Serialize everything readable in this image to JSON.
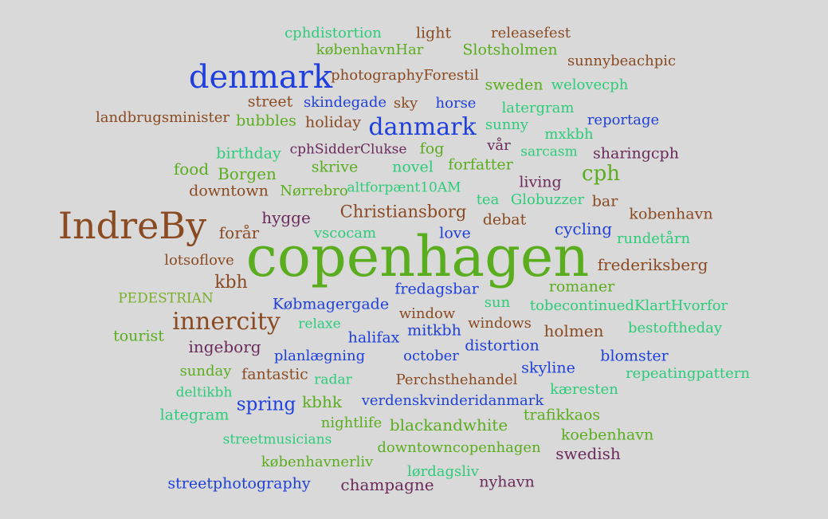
{
  "palette": {
    "background": "#d9d9d9",
    "green": "#5aad1e",
    "brown": "#8a4a22",
    "blue": "#1f3fe0",
    "teal": "#2dcc7a",
    "purple": "#6a2a5a",
    "olive": "#7aae2a"
  },
  "words": [
    {
      "text": "copenhagen",
      "color": "#5aad1e"
    },
    {
      "text": "IndreBy",
      "color": "#8a4a22"
    },
    {
      "text": "denmark",
      "color": "#1f3fe0"
    },
    {
      "text": "danmark",
      "color": "#1f3fe0"
    },
    {
      "text": "innercity",
      "color": "#8a4a22"
    },
    {
      "text": "cph",
      "color": "#5aad1e"
    },
    {
      "text": "Christiansborg",
      "color": "#8a4a22"
    },
    {
      "text": "spring",
      "color": "#1f3fe0"
    },
    {
      "text": "kbh",
      "color": "#8a4a22"
    },
    {
      "text": "cphdistortion",
      "color": "#2dcc7a"
    },
    {
      "text": "light",
      "color": "#8a4a22"
    },
    {
      "text": "releasefest",
      "color": "#8a4a22"
    },
    {
      "text": "københavnHar",
      "color": "#5aad1e"
    },
    {
      "text": "Slotsholmen",
      "color": "#5aad1e"
    },
    {
      "text": "sunnybeachpic",
      "color": "#8a4a22"
    },
    {
      "text": "photographyForestil",
      "color": "#8a4a22"
    },
    {
      "text": "sweden",
      "color": "#5aad1e"
    },
    {
      "text": "welovecph",
      "color": "#2dcc7a"
    },
    {
      "text": "street",
      "color": "#8a4a22"
    },
    {
      "text": "skindegade",
      "color": "#1f3fe0"
    },
    {
      "text": "sky",
      "color": "#8a4a22"
    },
    {
      "text": "horse",
      "color": "#1f3fe0"
    },
    {
      "text": "latergram",
      "color": "#2dcc7a"
    },
    {
      "text": "landbrugsminister",
      "color": "#8a4a22"
    },
    {
      "text": "bubbles",
      "color": "#5aad1e"
    },
    {
      "text": "holiday",
      "color": "#8a4a22"
    },
    {
      "text": "sunny",
      "color": "#2dcc7a"
    },
    {
      "text": "reportage",
      "color": "#1f3fe0"
    },
    {
      "text": "mxkbh",
      "color": "#2dcc7a"
    },
    {
      "text": "birthday",
      "color": "#2dcc7a"
    },
    {
      "text": "cphSidderClukse",
      "color": "#6a2a5a"
    },
    {
      "text": "fog",
      "color": "#5aad1e"
    },
    {
      "text": "vår",
      "color": "#6a2a5a"
    },
    {
      "text": "sarcasm",
      "color": "#2dcc7a"
    },
    {
      "text": "sharingcph",
      "color": "#6a2a5a"
    },
    {
      "text": "food",
      "color": "#5aad1e"
    },
    {
      "text": "Borgen",
      "color": "#5aad1e"
    },
    {
      "text": "skrive",
      "color": "#5aad1e"
    },
    {
      "text": "novel",
      "color": "#2dcc7a"
    },
    {
      "text": "forfatter",
      "color": "#5aad1e"
    },
    {
      "text": "living",
      "color": "#6a2a5a"
    },
    {
      "text": "downtown",
      "color": "#8a4a22"
    },
    {
      "text": "Nørrebro",
      "color": "#5aad1e"
    },
    {
      "text": "altforpænt10AM",
      "color": "#2dcc7a"
    },
    {
      "text": "tea",
      "color": "#2dcc7a"
    },
    {
      "text": "Globuzzer",
      "color": "#2dcc7a"
    },
    {
      "text": "bar",
      "color": "#8a4a22"
    },
    {
      "text": "hygge",
      "color": "#6a2a5a"
    },
    {
      "text": "debat",
      "color": "#8a4a22"
    },
    {
      "text": "kobenhavn",
      "color": "#8a4a22"
    },
    {
      "text": "forår",
      "color": "#8a4a22"
    },
    {
      "text": "vscocam",
      "color": "#2dcc7a"
    },
    {
      "text": "love",
      "color": "#1f3fe0"
    },
    {
      "text": "cycling",
      "color": "#1f3fe0"
    },
    {
      "text": "rundetårn",
      "color": "#2dcc7a"
    },
    {
      "text": "lotsoflove",
      "color": "#8a4a22"
    },
    {
      "text": "frederiksberg",
      "color": "#8a4a22"
    },
    {
      "text": "fredagsbar",
      "color": "#1f3fe0"
    },
    {
      "text": "romaner",
      "color": "#5aad1e"
    },
    {
      "text": "PEDESTRIAN",
      "color": "#7aae2a"
    },
    {
      "text": "Købmagergade",
      "color": "#1f3fe0"
    },
    {
      "text": "sun",
      "color": "#2dcc7a"
    },
    {
      "text": "tobecontinuedKlartHvorfor",
      "color": "#2dcc7a"
    },
    {
      "text": "window",
      "color": "#8a4a22"
    },
    {
      "text": "tourist",
      "color": "#5aad1e"
    },
    {
      "text": "relaxe",
      "color": "#2dcc7a"
    },
    {
      "text": "mitkbh",
      "color": "#1f3fe0"
    },
    {
      "text": "windows",
      "color": "#8a4a22"
    },
    {
      "text": "holmen",
      "color": "#8a4a22"
    },
    {
      "text": "bestoftheday",
      "color": "#2dcc7a"
    },
    {
      "text": "halifax",
      "color": "#1f3fe0"
    },
    {
      "text": "ingeborg",
      "color": "#6a2a5a"
    },
    {
      "text": "planlægning",
      "color": "#1f3fe0"
    },
    {
      "text": "october",
      "color": "#1f3fe0"
    },
    {
      "text": "distortion",
      "color": "#1f3fe0"
    },
    {
      "text": "blomster",
      "color": "#1f3fe0"
    },
    {
      "text": "sunday",
      "color": "#5aad1e"
    },
    {
      "text": "fantastic",
      "color": "#8a4a22"
    },
    {
      "text": "radar",
      "color": "#2dcc7a"
    },
    {
      "text": "Perchsthehandel",
      "color": "#8a4a22"
    },
    {
      "text": "skyline",
      "color": "#1f3fe0"
    },
    {
      "text": "repeatingpattern",
      "color": "#2dcc7a"
    },
    {
      "text": "deltikbh",
      "color": "#2dcc7a"
    },
    {
      "text": "kbhk",
      "color": "#5aad1e"
    },
    {
      "text": "verdenskvinderidanmark",
      "color": "#1f3fe0"
    },
    {
      "text": "kæresten",
      "color": "#2dcc7a"
    },
    {
      "text": "lategram",
      "color": "#2dcc7a"
    },
    {
      "text": "nightlife",
      "color": "#5aad1e"
    },
    {
      "text": "blackandwhite",
      "color": "#5aad1e"
    },
    {
      "text": "trafikkaos",
      "color": "#5aad1e"
    },
    {
      "text": "streetmusicians",
      "color": "#2dcc7a"
    },
    {
      "text": "downtowncopenhagen",
      "color": "#5aad1e"
    },
    {
      "text": "koebenhavn",
      "color": "#5aad1e"
    },
    {
      "text": "københavnerliv",
      "color": "#5aad1e"
    },
    {
      "text": "swedish",
      "color": "#6a2a5a"
    },
    {
      "text": "lørdagsliv",
      "color": "#2dcc7a"
    },
    {
      "text": "streetphotography",
      "color": "#1f3fe0"
    },
    {
      "text": "champagne",
      "color": "#6a2a5a"
    },
    {
      "text": "nyhavn",
      "color": "#6a2a5a"
    }
  ]
}
